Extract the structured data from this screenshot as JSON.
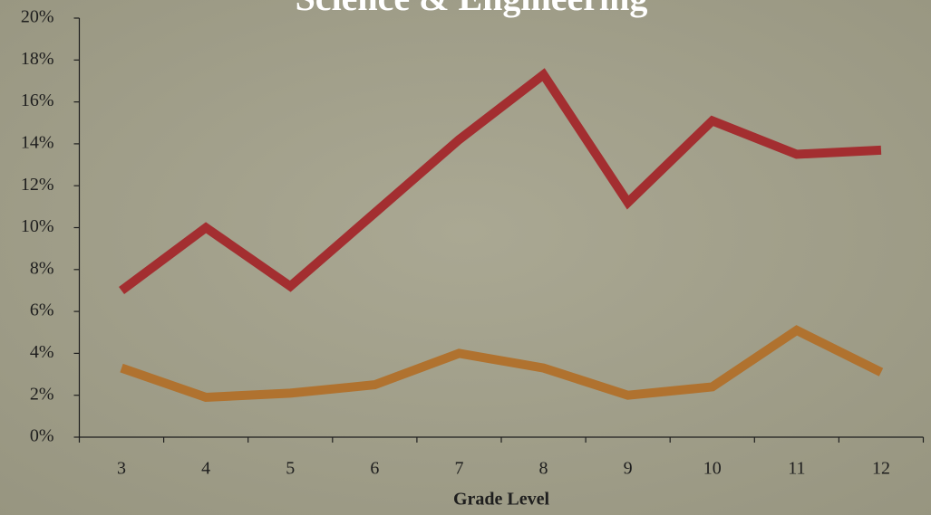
{
  "chart_data": {
    "type": "line",
    "title": "Science & Engineering",
    "x_label": "Grade Level",
    "categories": [
      "3",
      "4",
      "5",
      "6",
      "7",
      "8",
      "9",
      "10",
      "11",
      "12"
    ],
    "series": [
      {
        "color": "#a32e30",
        "values": [
          7.0,
          10.0,
          7.2,
          10.7,
          14.2,
          17.3,
          11.2,
          15.1,
          13.5,
          13.7
        ]
      },
      {
        "color": "#b0722f",
        "values": [
          3.3,
          1.9,
          2.1,
          2.5,
          4.0,
          3.3,
          2.0,
          2.4,
          5.1,
          3.1
        ]
      }
    ],
    "ylim": [
      0,
      20
    ],
    "yticks": [
      {
        "value": 0,
        "label": "0%"
      },
      {
        "value": 2,
        "label": "2%"
      },
      {
        "value": 4,
        "label": "4%"
      },
      {
        "value": 6,
        "label": "6%"
      },
      {
        "value": 8,
        "label": "8%"
      },
      {
        "value": 10,
        "label": "10%"
      },
      {
        "value": 12,
        "label": "12%"
      },
      {
        "value": 14,
        "label": "14%"
      },
      {
        "value": 16,
        "label": "16%"
      },
      {
        "value": 18,
        "label": "18%"
      },
      {
        "value": 20,
        "label": "20%"
      }
    ],
    "grid": false
  }
}
